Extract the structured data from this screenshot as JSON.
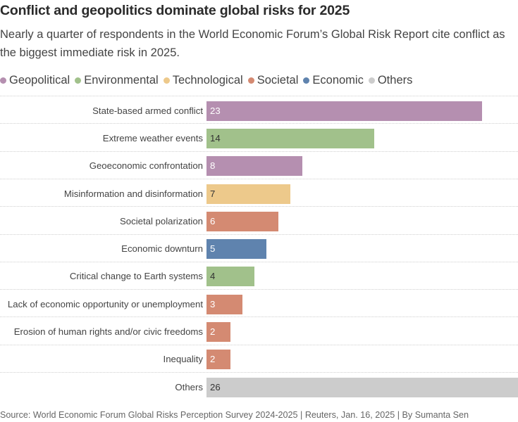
{
  "header": {
    "title": "Conflict and geopolitics dominate global risks for 2025",
    "subtitle": "Nearly a quarter of respondents in the World Economic Forum’s Global Risk Report cite conflict as the biggest immediate risk in 2025."
  },
  "legend": [
    {
      "key": "geopolitical",
      "label": "Geopolitical",
      "color": "#b58fb0"
    },
    {
      "key": "environmental",
      "label": "Environmental",
      "color": "#a1c18b"
    },
    {
      "key": "technological",
      "label": "Technological",
      "color": "#edc98b"
    },
    {
      "key": "societal",
      "label": "Societal",
      "color": "#d48a72"
    },
    {
      "key": "economic",
      "label": "Economic",
      "color": "#5f83ae"
    },
    {
      "key": "others",
      "label": "Others",
      "color": "#cccccc"
    }
  ],
  "chart_data": {
    "type": "bar",
    "orientation": "horizontal",
    "title": "Conflict and geopolitics dominate global risks for 2025",
    "xlim": [
      0,
      26
    ],
    "categories": [
      "State-based armed conflict",
      "Extreme weather events",
      "Geoeconomic confrontation",
      "Misinformation and disinformation",
      "Societal polarization",
      "Economic downturn",
      "Critical change to Earth systems",
      "Lack of economic opportunity or unemployment",
      "Erosion of human rights and/or civic freedoms",
      "Inequality",
      "Others"
    ],
    "values": [
      23,
      14,
      8,
      7,
      6,
      5,
      4,
      3,
      2,
      2,
      26
    ],
    "groups": [
      "geopolitical",
      "environmental",
      "geopolitical",
      "technological",
      "societal",
      "economic",
      "environmental",
      "societal",
      "societal",
      "societal",
      "others"
    ],
    "value_label_colors": [
      "#ffffff",
      "#333333",
      "#ffffff",
      "#333333",
      "#ffffff",
      "#ffffff",
      "#333333",
      "#ffffff",
      "#ffffff",
      "#ffffff",
      "#333333"
    ]
  },
  "footer": {
    "source": "Source: World Economic Forum Global Risks Perception Survey 2024-2025 | Reuters, Jan. 16, 2025 | By Sumanta Sen"
  }
}
